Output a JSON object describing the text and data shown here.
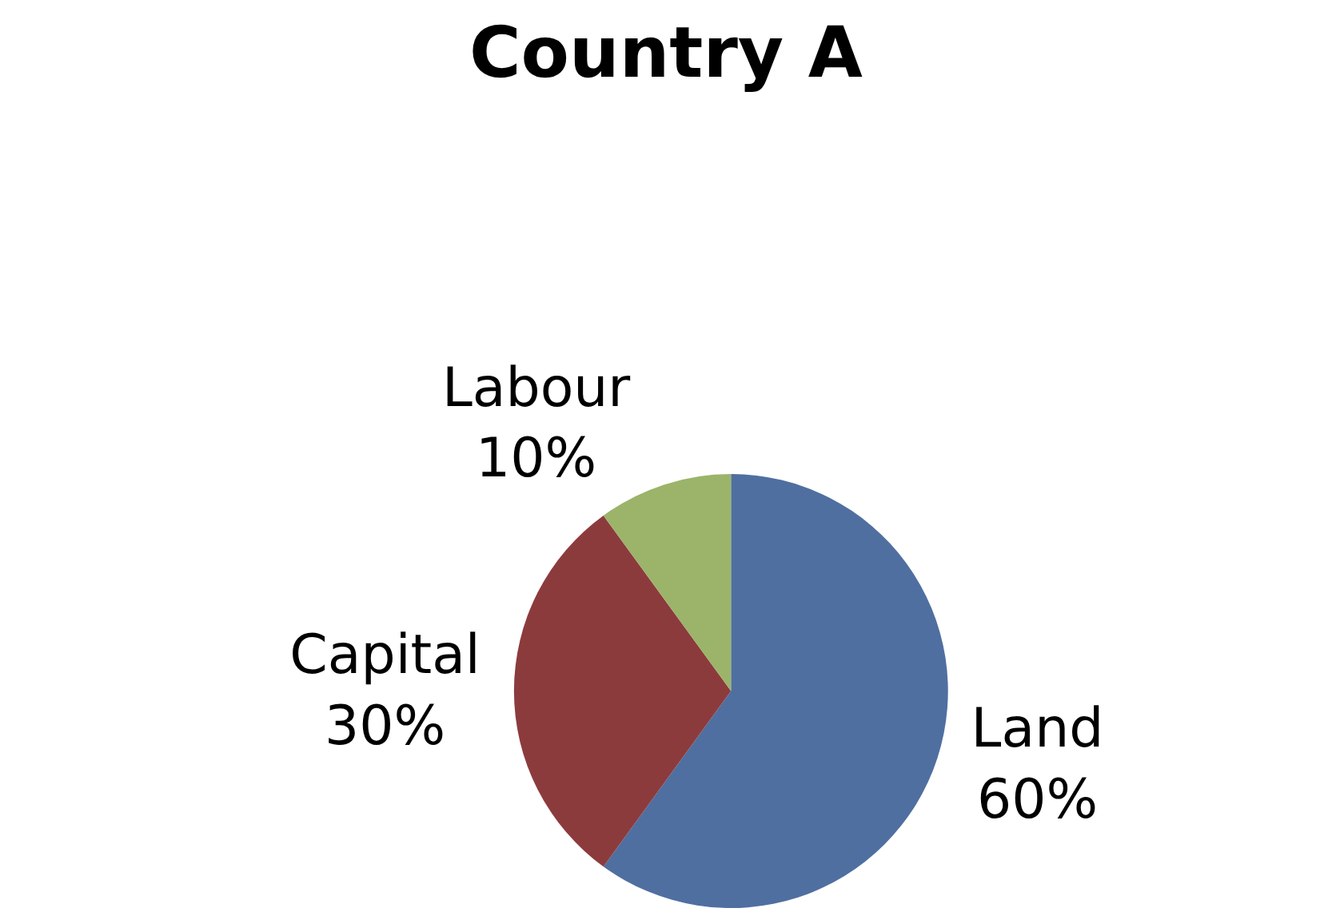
{
  "chart_data": {
    "type": "pie",
    "title": "Country A",
    "categories": [
      "Land",
      "Capital",
      "Labour"
    ],
    "values": [
      60,
      30,
      10
    ],
    "value_labels": [
      "60%",
      "30%",
      "10%"
    ],
    "colors": [
      "#4f6fa0",
      "#8c3b3d",
      "#9bb46a"
    ],
    "legend": false
  }
}
